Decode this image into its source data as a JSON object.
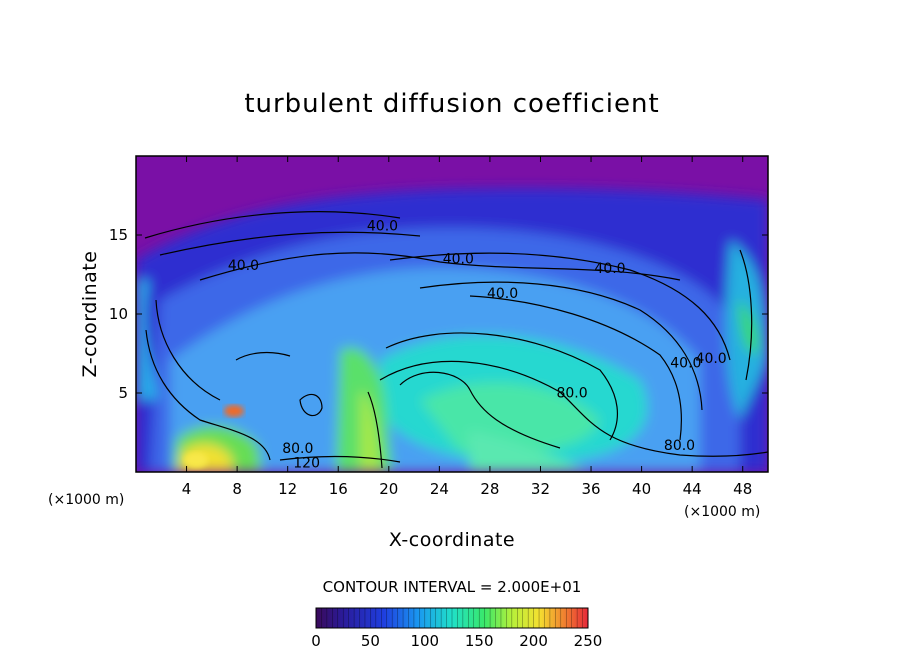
{
  "chart_data": {
    "type": "heatmap",
    "title": "turbulent diffusion coefficient",
    "xlabel": "X-coordinate",
    "ylabel": "Z-coordinate",
    "x_unit": "(×1000 m)",
    "z_unit": "(×1000 m)",
    "xlim": [
      0,
      50
    ],
    "ylim": [
      0,
      20
    ],
    "x_ticks": [
      "4",
      "8",
      "12",
      "16",
      "20",
      "24",
      "28",
      "32",
      "36",
      "40",
      "44",
      "48"
    ],
    "y_ticks": [
      "5",
      "10",
      "15"
    ],
    "contour_interval_text": "CONTOUR INTERVAL = 2.000E+01",
    "colorbar": {
      "min": 0,
      "max": 250,
      "ticks": [
        "0",
        "50",
        "100",
        "150",
        "200",
        "250"
      ]
    },
    "contour_labels": [
      {
        "text": "40.0",
        "x": 19.5,
        "z": 15.3
      },
      {
        "text": "40.0",
        "x": 8.5,
        "z": 12.8
      },
      {
        "text": "40.0",
        "x": 25.5,
        "z": 13.2
      },
      {
        "text": "40.0",
        "x": 37.5,
        "z": 12.6
      },
      {
        "text": "40.0",
        "x": 29.0,
        "z": 11.0
      },
      {
        "text": "40.0",
        "x": 43.5,
        "z": 6.6
      },
      {
        "text": "40.0",
        "x": 45.5,
        "z": 6.9
      },
      {
        "text": "80.0",
        "x": 34.5,
        "z": 4.7
      },
      {
        "text": "80.0",
        "x": 43.0,
        "z": 1.4
      },
      {
        "text": "80.0",
        "x": 12.8,
        "z": 1.2
      },
      {
        "text": "120",
        "x": 13.5,
        "z": 0.3
      }
    ]
  }
}
